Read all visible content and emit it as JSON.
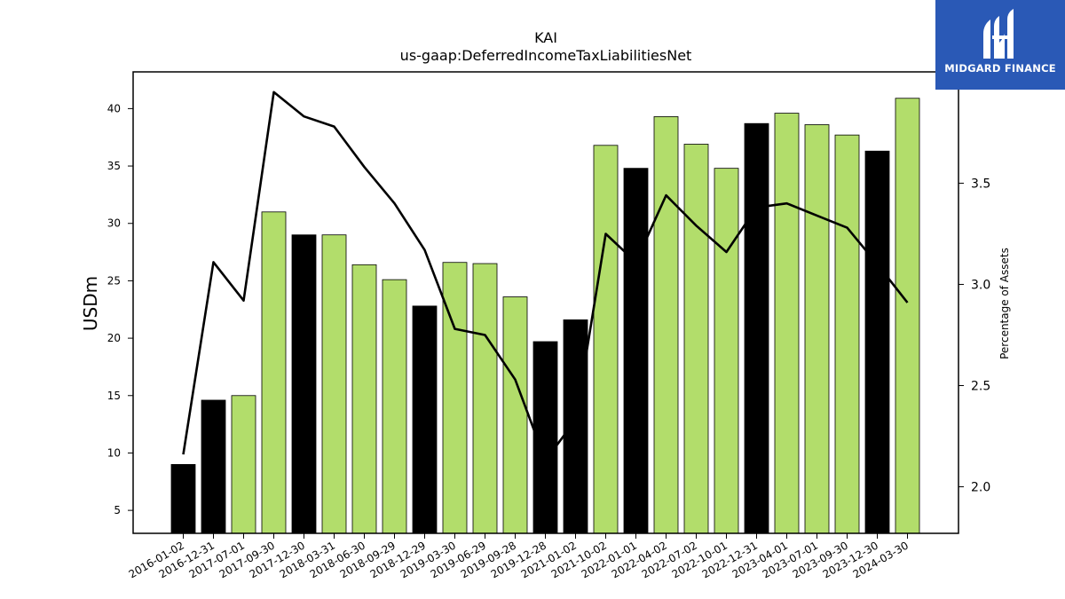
{
  "colors": {
    "bar_green": "#b2dd6b",
    "bar_black": "#000000",
    "line": "#000000",
    "logo_bg": "#2a59b6",
    "logo_fg": "#ffffff"
  },
  "logo": {
    "text": "MIDGARD FINANCE",
    "icon": "midgard-logo-icon"
  },
  "chart_data": {
    "type": "bar",
    "title": "KAI",
    "subtitle": "us-gaap:DeferredIncomeTaxLiabilitiesNet",
    "ylabel": "USDm",
    "y2label": "Percentage of Assets",
    "ylim": [
      3.0,
      43.2
    ],
    "y2lim": [
      1.77,
      4.05
    ],
    "yticks": [
      5,
      10,
      15,
      20,
      25,
      30,
      35,
      40
    ],
    "y2ticks": [
      2.0,
      2.5,
      3.0,
      3.5
    ],
    "y2tick_labels": [
      "2.0",
      "2.5",
      "3.0",
      "3.5"
    ],
    "grid": false,
    "legend": "none",
    "categories": [
      "2016-01-02",
      "2016-12-31",
      "2017-07-01",
      "2017-09-30",
      "2017-12-30",
      "2018-03-31",
      "2018-06-30",
      "2018-09-29",
      "2018-12-29",
      "2019-03-30",
      "2019-06-29",
      "2019-09-28",
      "2019-12-28",
      "2021-01-02",
      "2021-10-02",
      "2022-01-01",
      "2022-04-02",
      "2022-07-02",
      "2022-10-01",
      "2022-12-31",
      "2023-04-01",
      "2023-07-01",
      "2023-09-30",
      "2023-12-30",
      "2024-03-30"
    ],
    "series": [
      {
        "type": "bar",
        "values": [
          9.0,
          14.6,
          15.0,
          31.0,
          29.0,
          29.0,
          26.4,
          25.1,
          22.8,
          26.6,
          26.5,
          23.6,
          19.7,
          21.6,
          36.8,
          34.8,
          39.3,
          36.9,
          34.8,
          38.7,
          39.6,
          38.6,
          37.7,
          36.3,
          40.9
        ],
        "colors": [
          "black",
          "black",
          "green",
          "green",
          "black",
          "green",
          "green",
          "green",
          "black",
          "green",
          "green",
          "green",
          "black",
          "black",
          "green",
          "black",
          "green",
          "green",
          "green",
          "black",
          "green",
          "green",
          "green",
          "black",
          "green"
        ]
      },
      {
        "type": "line",
        "axis": "right",
        "values": [
          2.16,
          3.11,
          2.92,
          3.95,
          3.83,
          3.78,
          3.58,
          3.4,
          3.17,
          2.78,
          2.75,
          2.53,
          2.13,
          2.33,
          3.25,
          3.11,
          3.44,
          3.29,
          3.16,
          3.38,
          3.4,
          3.34,
          3.28,
          3.1,
          2.91
        ]
      }
    ]
  }
}
